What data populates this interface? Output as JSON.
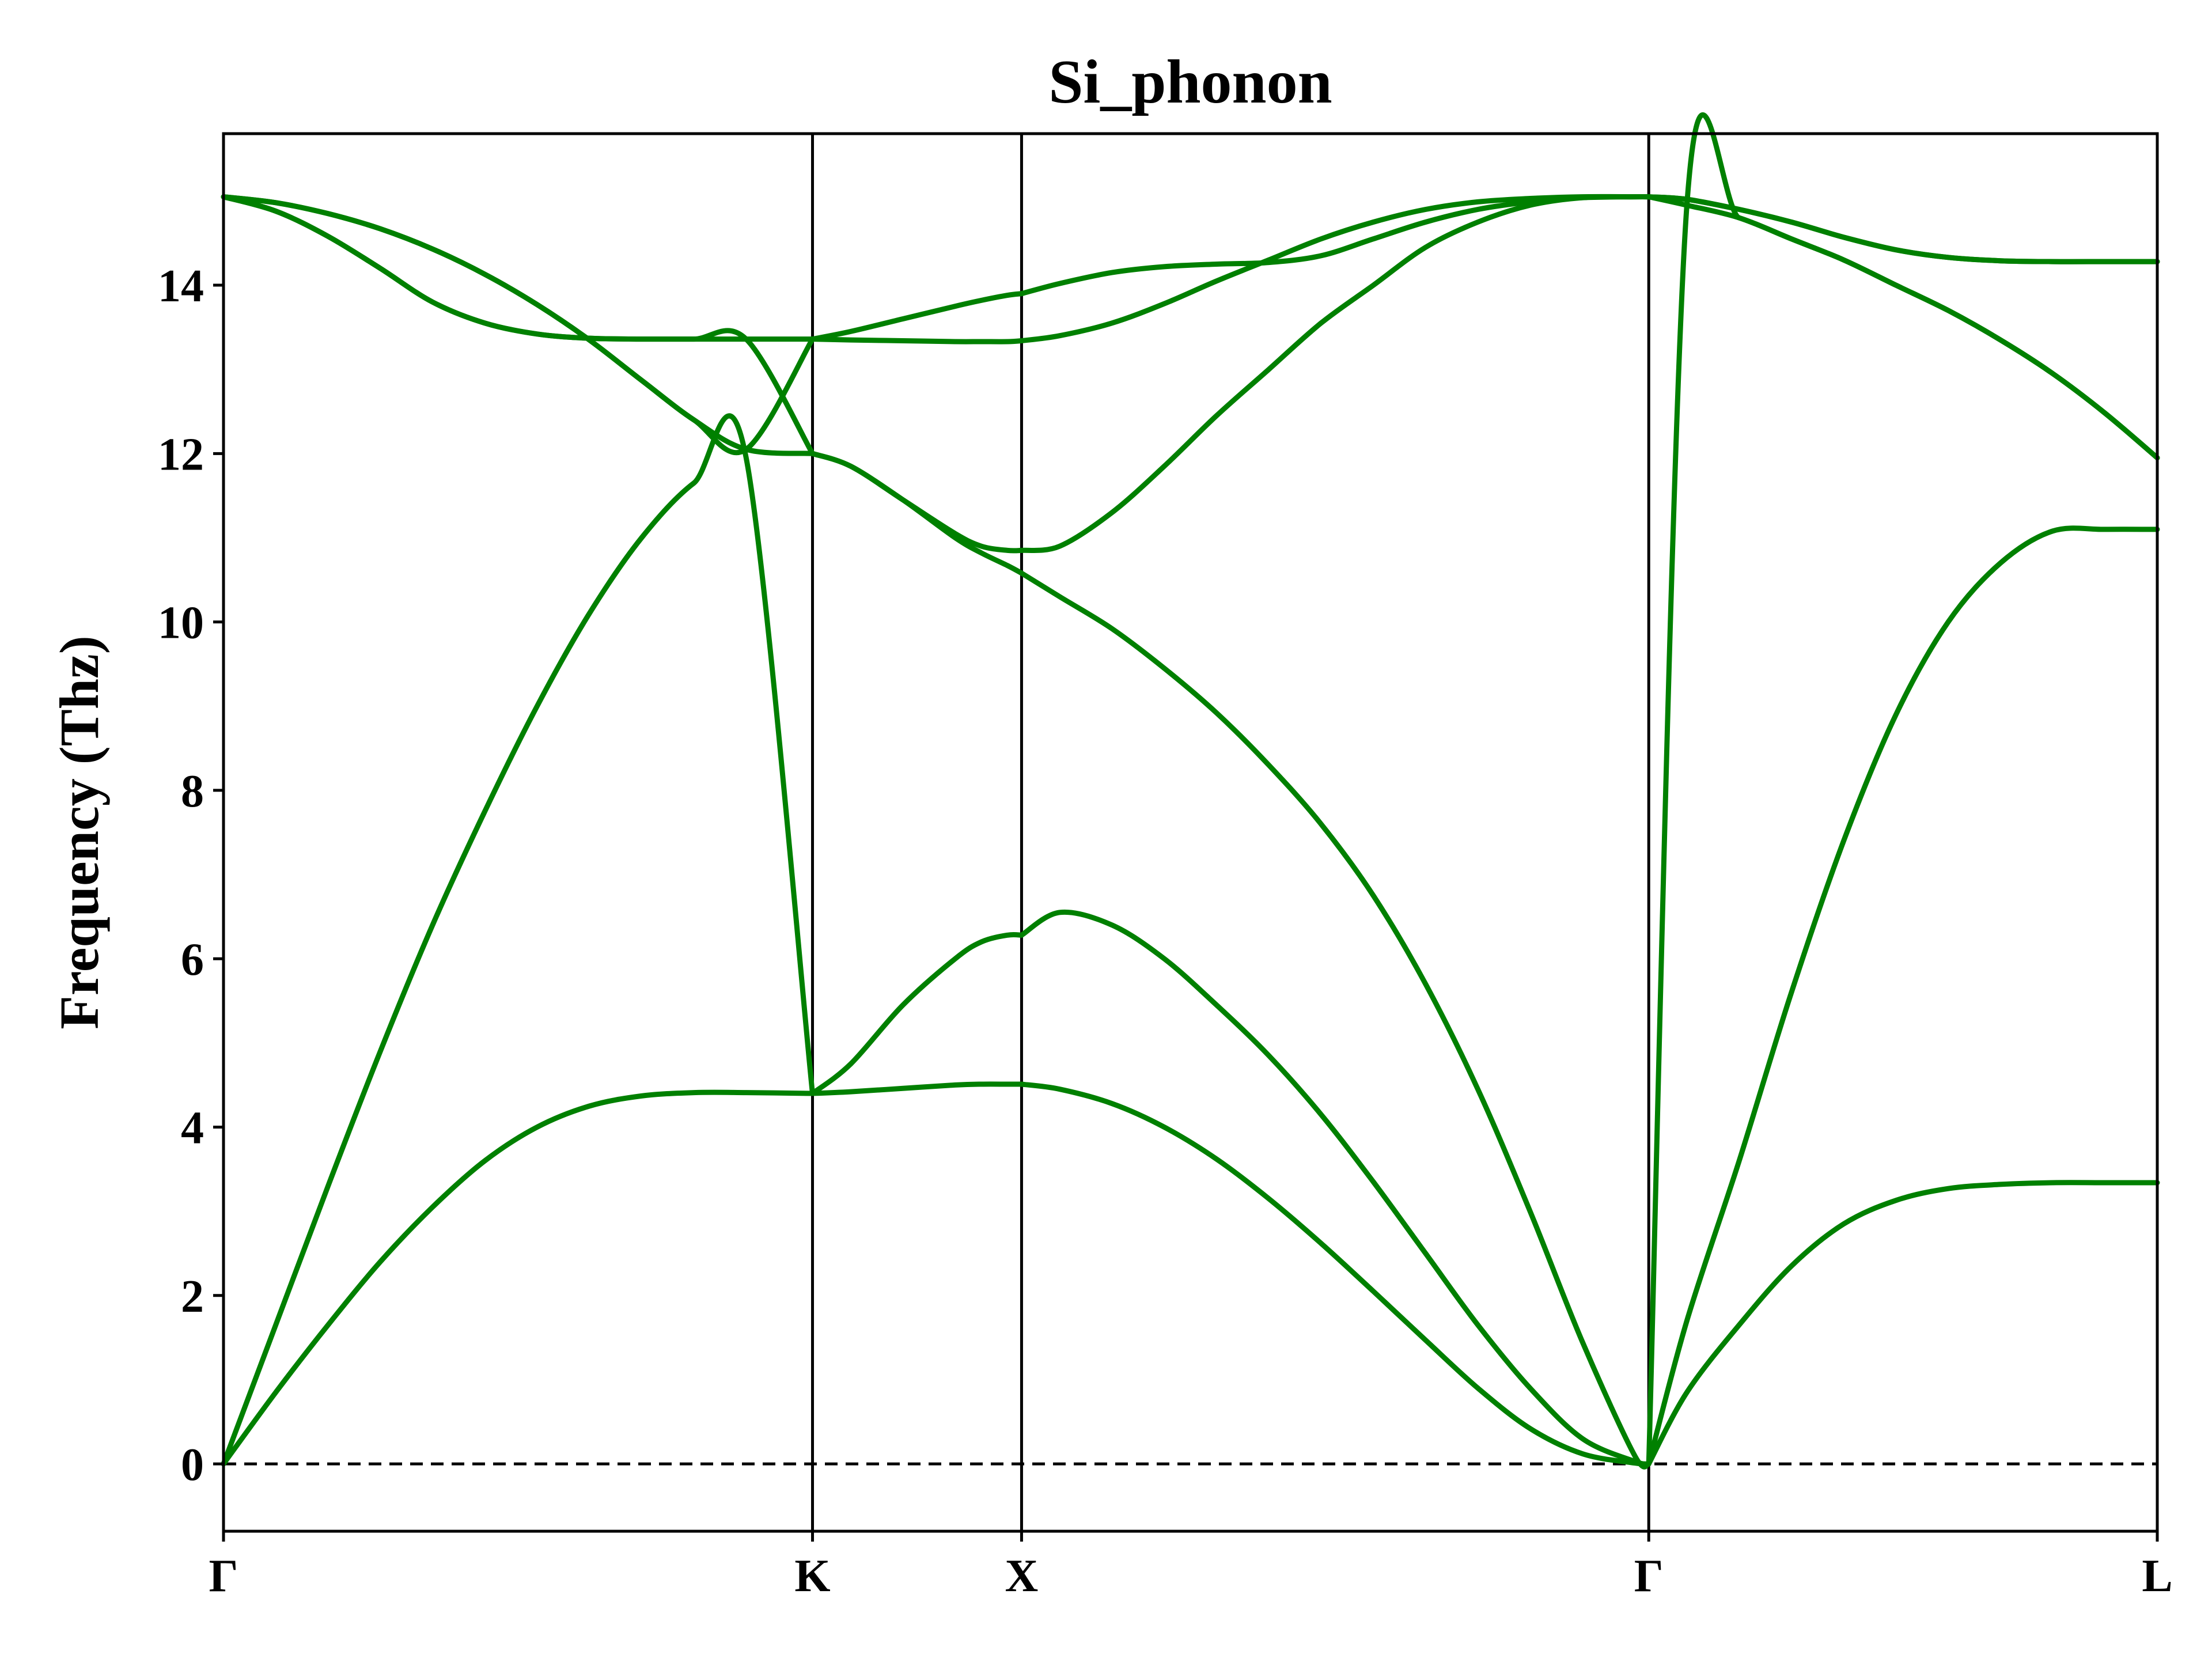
{
  "chart_data": {
    "type": "line",
    "title": "Si_phonon",
    "xlabel": "",
    "ylabel": "Frequency (Thz)",
    "ylim": [
      -0.8,
      15.8
    ],
    "xlim": [
      0,
      3.7
    ],
    "grid": false,
    "legend": "none",
    "line_color": "#008000",
    "zero_line": {
      "y": 0,
      "style": "dashed",
      "color": "#000000"
    },
    "yticks": [
      0,
      2,
      4,
      6,
      8,
      10,
      12,
      14
    ],
    "ytick_labels": [
      "0",
      "2",
      "4",
      "6",
      "8",
      "10",
      "12",
      "14"
    ],
    "high_symmetry_points": [
      {
        "label": "Γ",
        "x": 0.0
      },
      {
        "label": "K",
        "x": 1.127
      },
      {
        "label": "X",
        "x": 1.527
      },
      {
        "label": "Γ",
        "x": 2.727
      },
      {
        "label": "L",
        "x": 3.7
      }
    ],
    "series": [
      {
        "x": [
          0,
          0.1,
          0.2,
          0.3,
          0.4,
          0.5,
          0.6,
          0.7,
          0.8,
          0.9,
          1.0,
          1.127,
          1.2,
          1.3,
          1.4,
          1.45,
          1.5,
          1.527,
          1.6,
          1.7,
          1.8,
          1.9,
          2.0,
          2.1,
          2.2,
          2.3,
          2.4,
          2.5,
          2.6,
          2.7,
          2.727,
          2.8,
          2.9,
          3.0,
          3.1,
          3.2,
          3.3,
          3.4,
          3.5,
          3.6,
          3.7
        ],
        "y": [
          0,
          0.85,
          1.65,
          2.4,
          3.05,
          3.6,
          4.0,
          4.25,
          4.37,
          4.41,
          4.41,
          4.4,
          4.42,
          4.46,
          4.5,
          4.51,
          4.51,
          4.51,
          4.45,
          4.28,
          4.0,
          3.62,
          3.15,
          2.62,
          2.05,
          1.47,
          0.9,
          0.42,
          0.12,
          0.01,
          0,
          0.85,
          1.65,
          2.35,
          2.85,
          3.13,
          3.27,
          3.32,
          3.34,
          3.34,
          3.34
        ]
      },
      {
        "x": [
          0,
          0.1,
          0.2,
          0.3,
          0.4,
          0.5,
          0.6,
          0.7,
          0.8,
          0.9,
          1.0,
          1.127,
          1.2,
          1.3,
          1.4,
          1.45,
          1.5,
          1.527,
          1.6,
          1.7,
          1.8,
          1.9,
          2.0,
          2.1,
          2.2,
          2.3,
          2.4,
          2.5,
          2.6,
          2.7,
          2.727,
          2.8,
          2.9,
          3.0,
          3.1,
          3.2,
          3.3,
          3.4,
          3.5,
          3.6,
          3.7
        ],
        "y": [
          0,
          1.65,
          3.3,
          4.9,
          6.4,
          7.75,
          9.0,
          10.1,
          11.0,
          11.65,
          11.95,
          4.4,
          4.75,
          5.45,
          6.0,
          6.2,
          6.28,
          6.28,
          6.55,
          6.4,
          6.0,
          5.45,
          4.85,
          4.15,
          3.35,
          2.5,
          1.65,
          0.9,
          0.3,
          0.03,
          0,
          1.7,
          3.6,
          5.6,
          7.4,
          8.9,
          10.0,
          10.7,
          11.08,
          11.1,
          11.1
        ]
      },
      {
        "x": [
          0,
          0.1,
          0.2,
          0.3,
          0.4,
          0.5,
          0.6,
          0.7,
          0.8,
          0.9,
          1.0,
          1.127,
          1.2,
          1.3,
          1.4,
          1.45,
          1.5,
          1.527,
          1.6,
          1.7,
          1.8,
          1.9,
          2.0,
          2.1,
          2.2,
          2.3,
          2.4,
          2.5,
          2.6,
          2.7,
          2.727,
          2.8,
          2.9,
          3.0,
          3.1,
          3.2,
          3.3,
          3.4,
          3.5,
          3.6,
          3.7
        ],
        "y": [
          15.05,
          14.98,
          14.85,
          14.67,
          14.43,
          14.13,
          13.77,
          13.35,
          12.87,
          12.4,
          12.05,
          12.0,
          11.85,
          11.45,
          11.0,
          10.82,
          10.67,
          10.58,
          10.3,
          9.92,
          9.45,
          8.92,
          8.3,
          7.6,
          6.75,
          5.7,
          4.45,
          3.0,
          1.45,
          0.1,
          0,
          14.95,
          14.8,
          14.55,
          14.3,
          14.0,
          13.7,
          13.35,
          12.95,
          12.48,
          11.95
        ]
      },
      {
        "x": [
          0,
          0.1,
          0.2,
          0.3,
          0.4,
          0.5,
          0.6,
          0.7,
          0.8,
          0.9,
          1.0,
          1.127,
          1.2,
          1.3,
          1.4,
          1.45,
          1.5,
          1.527,
          1.6,
          1.7,
          1.8,
          1.9,
          2.0,
          2.1,
          2.2,
          2.3,
          2.4,
          2.5,
          2.6,
          2.7,
          2.727,
          2.8,
          2.9,
          3.0,
          3.1,
          3.2,
          3.3,
          3.4,
          3.5,
          3.6,
          3.7
        ],
        "y": [
          15.05,
          14.88,
          14.58,
          14.2,
          13.8,
          13.55,
          13.42,
          13.37,
          13.36,
          13.36,
          13.36,
          12.0,
          11.85,
          11.45,
          11.05,
          10.9,
          10.85,
          10.85,
          10.9,
          11.3,
          11.85,
          12.45,
          13.0,
          13.55,
          14.0,
          14.45,
          14.75,
          14.95,
          15.04,
          15.05,
          15.05,
          15.02,
          14.9,
          14.75,
          14.57,
          14.42,
          14.33,
          14.29,
          14.28,
          14.28,
          14.28
        ]
      },
      {
        "x": [
          0,
          0.1,
          0.2,
          0.3,
          0.4,
          0.5,
          0.6,
          0.7,
          0.8,
          0.9,
          1.0,
          1.127,
          1.2,
          1.3,
          1.4,
          1.45,
          1.5,
          1.527,
          1.6,
          1.7,
          1.8,
          1.9,
          2.0,
          2.1,
          2.2,
          2.3,
          2.4,
          2.5,
          2.6,
          2.7,
          2.727,
          2.8,
          2.9,
          3.0,
          3.1,
          3.2,
          3.3,
          3.4,
          3.5,
          3.6,
          3.7
        ],
        "y": [
          15.05,
          14.88,
          14.58,
          14.2,
          13.8,
          13.55,
          13.42,
          13.37,
          13.36,
          13.36,
          13.36,
          13.36,
          13.35,
          13.34,
          13.33,
          13.33,
          13.33,
          13.34,
          13.4,
          13.55,
          13.78,
          14.05,
          14.3,
          14.55,
          14.75,
          14.9,
          14.99,
          15.03,
          15.05,
          15.05,
          15.05,
          15.02,
          14.9,
          14.75,
          14.57,
          14.42,
          14.33,
          14.29,
          14.28,
          14.28,
          14.28
        ]
      },
      {
        "x": [
          0,
          0.1,
          0.2,
          0.3,
          0.4,
          0.5,
          0.6,
          0.7,
          0.8,
          0.9,
          1.0,
          1.127,
          1.2,
          1.3,
          1.4,
          1.45,
          1.5,
          1.527,
          1.6,
          1.7,
          1.8,
          1.9,
          2.0,
          2.1,
          2.2,
          2.3,
          2.4,
          2.5,
          2.6,
          2.7,
          2.727,
          2.8,
          2.9,
          3.0,
          3.1,
          3.2,
          3.3,
          3.4,
          3.5,
          3.6,
          3.7
        ],
        "y": [
          15.05,
          14.98,
          14.85,
          14.67,
          14.43,
          14.13,
          13.77,
          13.35,
          12.87,
          12.4,
          12.05,
          13.36,
          13.45,
          13.6,
          13.75,
          13.82,
          13.88,
          13.9,
          14.02,
          14.15,
          14.22,
          14.25,
          14.27,
          14.35,
          14.55,
          14.75,
          14.9,
          14.99,
          15.04,
          15.05,
          15.05,
          14.95,
          14.8,
          14.55,
          14.3,
          14.0,
          13.7,
          13.35,
          12.95,
          12.48,
          11.95
        ]
      }
    ]
  }
}
